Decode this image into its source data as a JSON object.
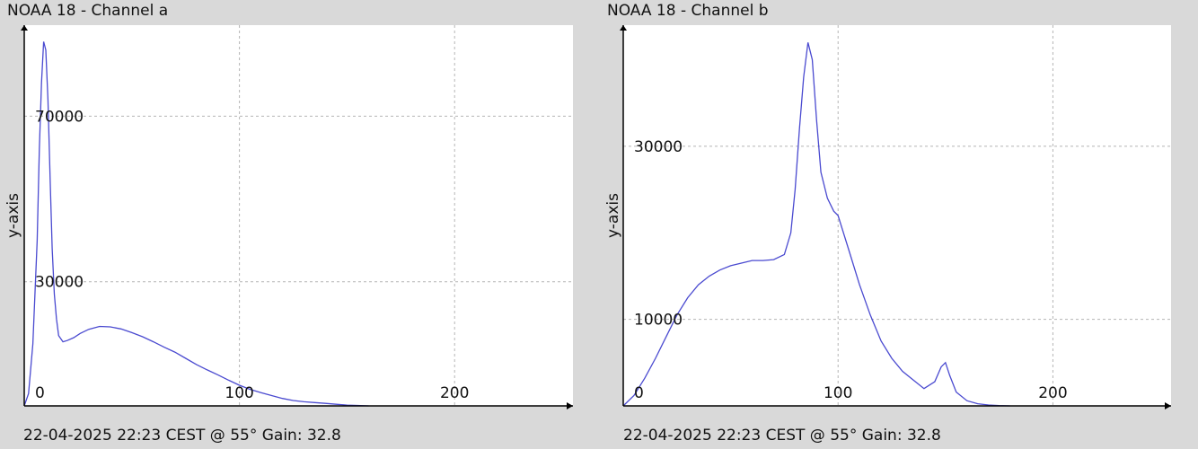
{
  "chart_data": [
    {
      "type": "line",
      "title": "NOAA 18 - Channel a",
      "footer": "22-04-2025 22:23 CEST @ 55° Gain: 32.8",
      "ylabel": "y-axis",
      "xlabel": "",
      "x_ticks": [
        "0",
        "100",
        "200"
      ],
      "x_tick_values": [
        0,
        100,
        200
      ],
      "y_ticks": [
        "30000",
        "70000"
      ],
      "y_tick_values": [
        30000,
        70000
      ],
      "xlim": [
        0,
        255
      ],
      "ylim": [
        0,
        92000
      ],
      "grid": true,
      "color": "#4a4ad0",
      "series": [
        {
          "x": [
            0,
            2,
            4,
            6,
            7,
            8,
            9,
            10,
            11,
            12,
            13,
            14,
            15,
            16,
            18,
            20,
            23,
            26,
            30,
            35,
            40,
            45,
            50,
            55,
            60,
            65,
            70,
            75,
            80,
            85,
            90,
            95,
            100,
            105,
            110,
            115,
            120,
            125,
            130,
            135,
            140,
            145,
            150,
            155,
            160
          ],
          "y": [
            0,
            3000,
            15000,
            40000,
            62000,
            78000,
            88000,
            86000,
            74000,
            55000,
            38000,
            27000,
            21000,
            17000,
            15500,
            15800,
            16500,
            17500,
            18500,
            19200,
            19100,
            18600,
            17700,
            16700,
            15500,
            14200,
            13000,
            11500,
            10000,
            8700,
            7500,
            6200,
            5000,
            4000,
            3200,
            2500,
            1800,
            1300,
            1000,
            800,
            600,
            400,
            200,
            100,
            0
          ]
        }
      ]
    },
    {
      "type": "line",
      "title": "NOAA 18 - Channel b",
      "footer": "22-04-2025 22:23 CEST @ 55° Gain: 32.8",
      "ylabel": "y-axis",
      "xlabel": "",
      "x_ticks": [
        "0",
        "100",
        "200"
      ],
      "x_tick_values": [
        0,
        100,
        200
      ],
      "y_ticks": [
        "10000",
        "30000"
      ],
      "y_tick_values": [
        10000,
        30000
      ],
      "xlim": [
        0,
        255
      ],
      "ylim": [
        0,
        44000
      ],
      "grid": true,
      "color": "#4a4ad0",
      "series": [
        {
          "x": [
            0,
            5,
            10,
            15,
            20,
            25,
            30,
            35,
            40,
            45,
            50,
            55,
            60,
            65,
            70,
            75,
            78,
            80,
            82,
            84,
            86,
            88,
            90,
            92,
            95,
            98,
            100,
            105,
            110,
            115,
            120,
            125,
            130,
            135,
            140,
            145,
            148,
            150,
            152,
            155,
            160,
            165,
            170,
            175,
            180
          ],
          "y": [
            0,
            1200,
            3200,
            5500,
            8000,
            10500,
            12500,
            14000,
            15000,
            15700,
            16200,
            16500,
            16800,
            16800,
            16900,
            17500,
            20000,
            25000,
            32000,
            38000,
            42000,
            40000,
            33000,
            27000,
            24000,
            22500,
            22000,
            18000,
            14000,
            10500,
            7500,
            5500,
            4000,
            3000,
            2000,
            2800,
            4500,
            5000,
            3500,
            1600,
            600,
            250,
            100,
            30,
            0
          ]
        }
      ]
    }
  ]
}
